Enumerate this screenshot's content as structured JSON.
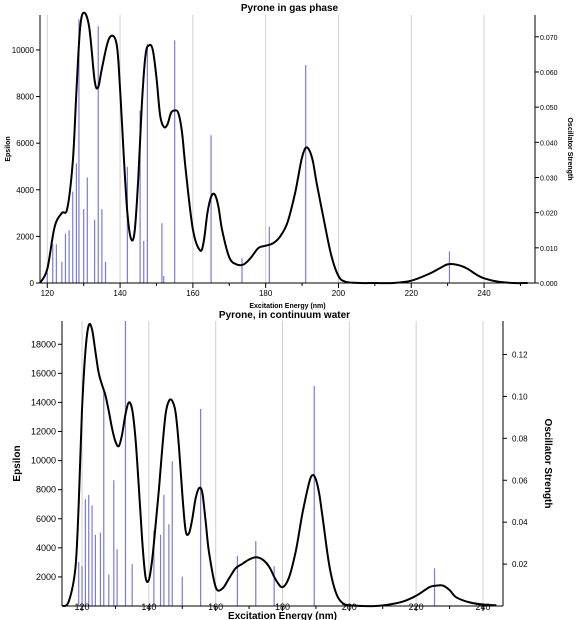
{
  "chart_data": [
    {
      "type": "line",
      "title": "Pyrone in gas phase",
      "xlabel": "Excitation Energy (nm)",
      "ylabel": "Epsilon",
      "y2label": "Oscillator Strength",
      "xlim": [
        118,
        254
      ],
      "ylim": [
        0,
        11500
      ],
      "y2lim": [
        0,
        0.0762
      ],
      "xticks": [
        120,
        140,
        160,
        180,
        200,
        220,
        240
      ],
      "yticks": [
        0,
        2000,
        4000,
        6000,
        8000,
        10000
      ],
      "y2ticks": [
        0.0,
        0.01,
        0.02,
        0.03,
        0.04,
        0.05,
        0.06,
        0.07
      ],
      "y2tick_labels": [
        "0.000",
        "0.010",
        "0.020",
        "0.030",
        "0.040",
        "0.050",
        "0.060",
        "0.070"
      ],
      "grid": true,
      "series": [
        {
          "kind": "curve",
          "x": [
            118,
            120,
            122,
            124,
            125.5,
            127,
            128,
            129,
            130,
            131.5,
            133,
            134,
            135,
            137,
            139,
            140,
            141,
            142,
            143,
            144,
            145,
            146,
            147,
            148,
            149,
            150,
            151,
            152,
            153,
            154,
            155,
            156,
            157,
            158,
            160,
            162,
            163,
            164,
            165,
            166,
            167,
            168,
            170,
            172,
            174,
            176,
            178,
            180,
            182,
            184,
            186,
            188,
            189,
            190,
            191,
            192,
            193,
            194,
            196,
            198,
            200,
            202,
            206,
            210,
            215,
            220,
            225,
            228,
            230,
            232,
            235,
            238,
            240,
            244,
            248,
            252
          ],
          "y": [
            0,
            600,
            2400,
            3000,
            3200,
            5200,
            8200,
            10900,
            11600,
            11000,
            8700,
            8400,
            9200,
            10500,
            10300,
            8300,
            5500,
            3000,
            1900,
            2200,
            4500,
            7700,
            9800,
            10200,
            10000,
            8800,
            7200,
            6700,
            6800,
            7300,
            7400,
            7300,
            6500,
            4900,
            2300,
            1400,
            1800,
            3000,
            3700,
            3800,
            3300,
            2300,
            1100,
            800,
            800,
            1100,
            1500,
            1600,
            1700,
            2000,
            2600,
            3800,
            4600,
            5400,
            5800,
            5700,
            5200,
            4300,
            2700,
            1200,
            300,
            50,
            0,
            0,
            0,
            100,
            400,
            650,
            800,
            800,
            650,
            350,
            200,
            50,
            0,
            0
          ]
        },
        {
          "kind": "sticks",
          "axis": "y2",
          "x": [
            120,
            121.5,
            122.5,
            124,
            125,
            126,
            127,
            128,
            128.7,
            130,
            131,
            133,
            134,
            135,
            136,
            142,
            145.5,
            146.5,
            147.5,
            151.5,
            152,
            155,
            165,
            173.5,
            181,
            191,
            230.5
          ],
          "y": [
            0.003,
            0.011,
            0.011,
            0.006,
            0.014,
            0.015,
            0.026,
            0.034,
            0.075,
            0.021,
            0.03,
            0.018,
            0.073,
            0.021,
            0.006,
            0.033,
            0.049,
            0.012,
            0.068,
            0.017,
            0.002,
            0.069,
            0.042,
            0.007,
            0.016,
            0.062,
            0.009
          ]
        }
      ]
    },
    {
      "type": "line",
      "title": "Pyrone, in continuum water",
      "xlabel": "Excitation Energy (nm)",
      "ylabel": "Epsilon",
      "y2label": "Oscillator Strength",
      "xlim": [
        114,
        246
      ],
      "ylim": [
        0,
        19600
      ],
      "y2lim": [
        0,
        0.136
      ],
      "xticks": [
        120,
        140,
        160,
        180,
        200,
        220,
        240
      ],
      "yticks": [
        2000,
        4000,
        6000,
        8000,
        10000,
        12000,
        14000,
        16000,
        18000
      ],
      "y2ticks": [
        0.02,
        0.04,
        0.06,
        0.08,
        0.1,
        0.12
      ],
      "y2tick_labels": [
        "0.02",
        "0.04",
        "0.06",
        "0.08",
        "0.10",
        "0.12"
      ],
      "grid": true,
      "series": [
        {
          "kind": "curve",
          "x": [
            114,
            116,
            118,
            119,
            120,
            121,
            122,
            123,
            124,
            125,
            126,
            127,
            128,
            129,
            130,
            131,
            132,
            133,
            134,
            135,
            136,
            137,
            138,
            139,
            140,
            141,
            142,
            143,
            144,
            145,
            146,
            147,
            148,
            149,
            150,
            151,
            152,
            153,
            154,
            155,
            156,
            157,
            158,
            160,
            162,
            164,
            166,
            168,
            170,
            172,
            174,
            176,
            178,
            180,
            182,
            184,
            186,
            188,
            189,
            190,
            191,
            192,
            194,
            196,
            198,
            200,
            204,
            208,
            212,
            216,
            220,
            224,
            226,
            228,
            230,
            232,
            236,
            240,
            244
          ],
          "y": [
            0,
            300,
            2600,
            7000,
            13500,
            17500,
            19300,
            19000,
            17500,
            16000,
            15200,
            14500,
            13400,
            12200,
            11300,
            11000,
            11800,
            13200,
            14000,
            13500,
            11500,
            8200,
            4500,
            2000,
            1800,
            3200,
            5500,
            8000,
            10800,
            13200,
            14100,
            14100,
            13300,
            11000,
            7700,
            5200,
            5000,
            6000,
            7400,
            8100,
            7800,
            5800,
            3700,
            1300,
            1200,
            1900,
            2600,
            2900,
            3200,
            3350,
            3200,
            2700,
            1800,
            1300,
            2000,
            3800,
            6400,
            8500,
            9000,
            8700,
            7700,
            6100,
            2800,
            900,
            200,
            50,
            0,
            0,
            100,
            300,
            700,
            1300,
            1400,
            1400,
            1100,
            600,
            250,
            100,
            50
          ]
        },
        {
          "kind": "sticks",
          "axis": "y2",
          "x": [
            119,
            120,
            121,
            122,
            123,
            124,
            125.5,
            126.5,
            128,
            129.5,
            130.5,
            133,
            135,
            141.5,
            143.5,
            144.5,
            146,
            147,
            150,
            155.5,
            166.5,
            172,
            177.5,
            189.5,
            225.5
          ],
          "y": [
            0.021,
            0.019,
            0.051,
            0.053,
            0.048,
            0.034,
            0.035,
            0.103,
            0.015,
            0.06,
            0.027,
            0.136,
            0.02,
            0.036,
            0.034,
            0.053,
            0.039,
            0.069,
            0.014,
            0.094,
            0.024,
            0.031,
            0.019,
            0.105,
            0.018
          ]
        }
      ]
    }
  ]
}
